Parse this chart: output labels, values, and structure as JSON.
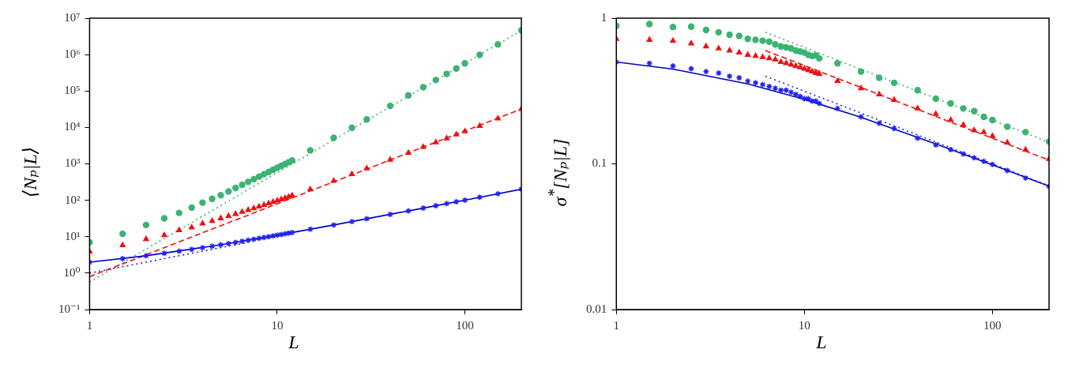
{
  "chart_data": [
    {
      "type": "scatter",
      "xlabel": "L",
      "ylabel": "⟨Nₚ|L⟩",
      "log": "xy",
      "xlim": [
        1,
        200
      ],
      "xticks": [
        1,
        10,
        100
      ],
      "ylim": [
        0.1,
        10000000
      ],
      "yticks": [
        {
          "value": 0.1,
          "label": "10⁻¹"
        },
        {
          "value": 1,
          "label": "10⁰"
        },
        {
          "value": 10,
          "label": "10¹"
        },
        {
          "value": 100,
          "label": "10²"
        },
        {
          "value": 1000,
          "label": "10³"
        },
        {
          "value": 10000,
          "label": "10⁴"
        },
        {
          "value": 100000,
          "label": "10⁵"
        },
        {
          "value": 1000000,
          "label": "10⁶"
        },
        {
          "value": 10000000,
          "label": "10⁷"
        }
      ],
      "x": [
        1,
        1.5,
        2,
        2.5,
        3,
        3.5,
        4,
        4.5,
        5,
        5.5,
        6,
        6.5,
        7,
        7.5,
        8,
        8.5,
        9,
        9.5,
        10,
        10.5,
        11,
        11.5,
        12,
        15,
        20,
        25,
        30,
        40,
        50,
        60,
        70,
        80,
        90,
        100,
        120,
        150,
        200
      ],
      "series": [
        {
          "color": "#2020ee",
          "marker": "cross",
          "values": [
            2,
            2.5,
            3,
            3.5,
            4,
            4.5,
            5,
            5.5,
            6,
            6.5,
            7,
            7.5,
            8,
            8.5,
            9,
            9.5,
            10,
            10.5,
            11,
            11.5,
            12,
            12.5,
            13,
            16,
            21,
            26,
            31,
            41,
            51,
            61,
            71,
            81,
            91,
            101,
            121,
            151,
            201
          ]
        },
        {
          "color": "#ee1111",
          "marker": "triangle",
          "values": [
            3.9,
            5.8,
            8.6,
            11,
            15,
            18,
            23,
            27,
            32,
            37,
            42,
            48,
            54,
            60,
            67,
            74,
            82,
            90,
            98,
            106,
            115,
            124,
            135,
            200,
            340,
            520,
            750,
            1300,
            2000,
            2900,
            3900,
            5000,
            6400,
            7800,
            11000,
            17500,
            32000
          ]
        },
        {
          "color": "#3cb371",
          "marker": "circle",
          "values": [
            7,
            12,
            21,
            32,
            45,
            63,
            86,
            110,
            138,
            175,
            218,
            266,
            320,
            380,
            447,
            520,
            600,
            690,
            780,
            880,
            990,
            1110,
            1240,
            2350,
            5200,
            9800,
            16600,
            39000,
            76000,
            127000,
            200000,
            295000,
            415000,
            575000,
            980000,
            1900000,
            4600000
          ]
        },
        {
          "type": "line",
          "color": "#0000cc",
          "marker": "none",
          "line_style": "solid",
          "x": [
            1,
            2,
            5,
            10,
            20,
            50,
            100,
            200
          ],
          "values": [
            2,
            3,
            6,
            11,
            21,
            51,
            101,
            201
          ]
        },
        {
          "type": "line",
          "color": "#2020ee",
          "marker": "none",
          "line_style": "dotted",
          "x": [
            1,
            7
          ],
          "values": [
            1,
            7
          ]
        },
        {
          "type": "line",
          "color": "#ee1111",
          "marker": "none",
          "line_style": "dashed",
          "x": [
            1,
            200
          ],
          "values": [
            0.8,
            32000
          ]
        },
        {
          "type": "line",
          "color": "#3cb371",
          "marker": "none",
          "line_style": "dotted",
          "x": [
            1,
            200
          ],
          "values": [
            0.57,
            4600000
          ]
        }
      ]
    },
    {
      "type": "scatter",
      "xlabel": "L",
      "ylabel": "σ$^{*}$[Nₚ|L]",
      "log": "xy",
      "xlim": [
        1,
        200
      ],
      "xticks": [
        1,
        10,
        100
      ],
      "ylim": [
        0.01,
        1
      ],
      "yticks": [
        0.01,
        0.1,
        1
      ],
      "x": [
        1,
        1.5,
        2,
        2.5,
        3,
        3.5,
        4,
        4.5,
        5,
        5.5,
        6,
        6.5,
        7,
        7.5,
        8,
        8.5,
        9,
        9.5,
        10,
        10.5,
        11,
        11.5,
        12,
        15,
        20,
        25,
        30,
        40,
        50,
        60,
        70,
        80,
        90,
        100,
        120,
        150,
        200
      ],
      "series": [
        {
          "color": "#2020ee",
          "marker": "cross",
          "values": [
            0.5,
            0.49,
            0.47,
            0.45,
            0.43,
            0.42,
            0.4,
            0.39,
            0.37,
            0.36,
            0.35,
            0.34,
            0.33,
            0.32,
            0.32,
            0.31,
            0.3,
            0.29,
            0.28,
            0.28,
            0.27,
            0.27,
            0.26,
            0.24,
            0.21,
            0.19,
            0.175,
            0.15,
            0.135,
            0.125,
            0.117,
            0.11,
            0.104,
            0.099,
            0.09,
            0.08,
            0.07
          ]
        },
        {
          "color": "#ee1111",
          "marker": "triangle",
          "values": [
            0.72,
            0.71,
            0.7,
            0.67,
            0.64,
            0.62,
            0.6,
            0.58,
            0.56,
            0.55,
            0.54,
            0.53,
            0.52,
            0.5,
            0.49,
            0.48,
            0.47,
            0.46,
            0.45,
            0.44,
            0.43,
            0.42,
            0.415,
            0.37,
            0.33,
            0.3,
            0.275,
            0.24,
            0.22,
            0.2,
            0.185,
            0.17,
            0.165,
            0.155,
            0.14,
            0.125,
            0.108
          ]
        },
        {
          "color": "#3cb371",
          "marker": "circle",
          "values": [
            0.885,
            0.91,
            0.87,
            0.875,
            0.83,
            0.8,
            0.77,
            0.755,
            0.72,
            0.71,
            0.7,
            0.69,
            0.66,
            0.64,
            0.63,
            0.62,
            0.6,
            0.59,
            0.58,
            0.56,
            0.55,
            0.555,
            0.53,
            0.49,
            0.43,
            0.39,
            0.36,
            0.32,
            0.28,
            0.26,
            0.24,
            0.23,
            0.21,
            0.2,
            0.18,
            0.165,
            0.142
          ]
        },
        {
          "type": "line",
          "color": "#0000cc",
          "marker": "none",
          "line_style": "solid",
          "x": [
            1,
            2,
            5,
            10,
            20,
            50,
            100,
            200
          ],
          "values": [
            0.5,
            0.447,
            0.354,
            0.277,
            0.209,
            0.137,
            0.0985,
            0.0702
          ]
        },
        {
          "type": "line",
          "color": "#2020ee",
          "marker": "none",
          "line_style": "dotted",
          "x": [
            6.2,
            200
          ],
          "values": [
            0.4,
            0.0707
          ]
        },
        {
          "type": "line",
          "color": "#ee1111",
          "marker": "none",
          "line_style": "dashed",
          "x": [
            6.2,
            200
          ],
          "values": [
            0.6,
            0.106
          ]
        },
        {
          "type": "line",
          "color": "#3cb371",
          "marker": "none",
          "line_style": "dotted",
          "x": [
            6.2,
            200
          ],
          "values": [
            0.8,
            0.141
          ]
        }
      ]
    }
  ]
}
